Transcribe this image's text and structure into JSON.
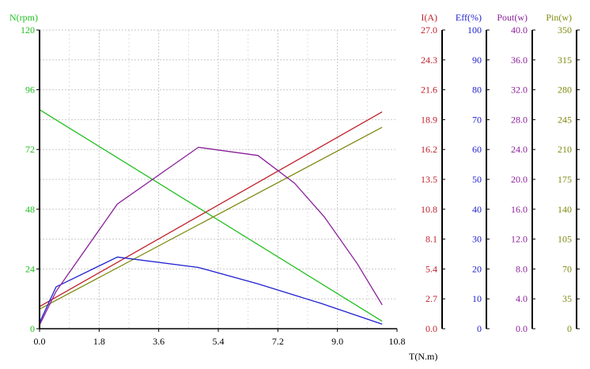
{
  "chart_data": {
    "type": "line",
    "xlabel": "T(N.m)",
    "x_ticks": [
      "0.0",
      "1.8",
      "3.6",
      "5.4",
      "7.2",
      "9.0",
      "10.8"
    ],
    "xlim": [
      0,
      10.8
    ],
    "grid": true,
    "axes": [
      {
        "id": "N",
        "label": "N(rpm)",
        "color": "#1fbf1f",
        "ticks": [
          "0",
          "24",
          "48",
          "72",
          "96",
          "120"
        ],
        "range": [
          0,
          120
        ]
      },
      {
        "id": "I",
        "label": "I(A)",
        "color": "#c0202a",
        "ticks": [
          "0.0",
          "2.7",
          "5.4",
          "8.1",
          "10.8",
          "13.5",
          "16.2",
          "18.9",
          "21.6",
          "24.3",
          "27.0"
        ],
        "range": [
          0,
          27
        ]
      },
      {
        "id": "Eff",
        "label": "Eff(%)",
        "color": "#1f1fd0",
        "ticks": [
          "0",
          "10",
          "20",
          "30",
          "40",
          "50",
          "60",
          "70",
          "80",
          "90",
          "100"
        ],
        "range": [
          0,
          100
        ]
      },
      {
        "id": "Pout",
        "label": "Pout(w)",
        "color": "#8a1f9a",
        "ticks": [
          "0.0",
          "4.0",
          "8.0",
          "12.0",
          "16.0",
          "20.0",
          "24.0",
          "28.0",
          "32.0",
          "36.0",
          "40.0"
        ],
        "range": [
          0,
          40
        ]
      },
      {
        "id": "Pin",
        "label": "Pin(w)",
        "color": "#7f8a10",
        "ticks": [
          "0",
          "35",
          "70",
          "105",
          "140",
          "175",
          "210",
          "245",
          "280",
          "315",
          "350"
        ],
        "range": [
          0,
          350
        ]
      }
    ],
    "series": [
      {
        "axis": "N",
        "color": "#1fbf1f",
        "x": [
          0,
          10.35
        ],
        "y": [
          88,
          3
        ]
      },
      {
        "axis": "I",
        "color": "#c0202a",
        "x": [
          0,
          10.35
        ],
        "y": [
          2.0,
          19.6
        ]
      },
      {
        "axis": "Pin",
        "color": "#7f8a10",
        "x": [
          0,
          10.35
        ],
        "y": [
          23,
          236
        ]
      },
      {
        "axis": "Eff",
        "color": "#1f1fd0",
        "x": [
          0,
          0.5,
          2.35,
          4.8,
          6.6,
          8.5,
          10.35
        ],
        "y": [
          2,
          14,
          24,
          20.5,
          15,
          8.5,
          1.5
        ]
      },
      {
        "axis": "Pout",
        "color": "#8a1f9a",
        "x": [
          0,
          0.5,
          2.35,
          4.8,
          6.6,
          7.7,
          8.6,
          9.6,
          10.35
        ],
        "y": [
          0.5,
          5,
          16.7,
          24.3,
          23.2,
          19.5,
          15,
          8.7,
          3.2
        ]
      }
    ]
  }
}
